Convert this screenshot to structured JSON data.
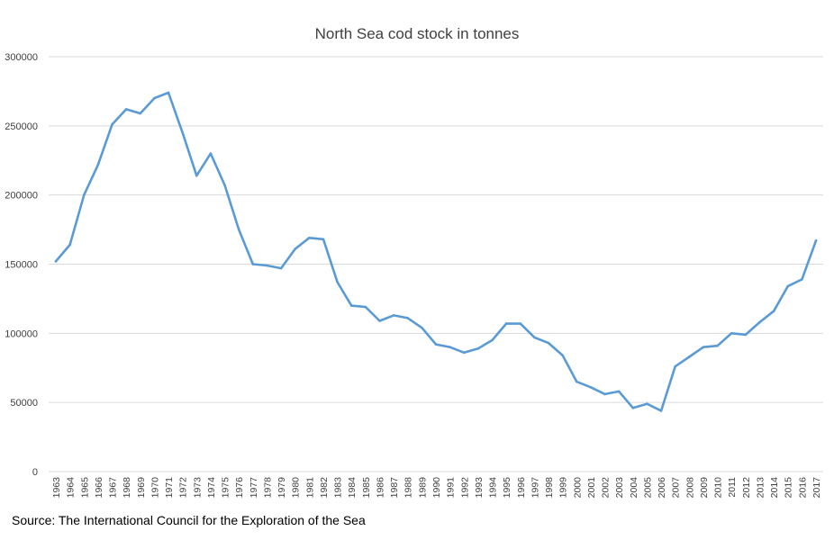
{
  "chart_data": {
    "type": "line",
    "title": "North Sea cod stock in tonnes",
    "xlabel": "",
    "ylabel": "",
    "ylim": [
      0,
      300000
    ],
    "yticks": [
      0,
      50000,
      100000,
      150000,
      200000,
      250000,
      300000
    ],
    "grid": true,
    "legend": "none",
    "x": [
      "1963",
      "1964",
      "1965",
      "1966",
      "1967",
      "1968",
      "1969",
      "1970",
      "1971",
      "1972",
      "1973",
      "1974",
      "1975",
      "1976",
      "1977",
      "1978",
      "1979",
      "1980",
      "1981",
      "1982",
      "1983",
      "1984",
      "1985",
      "1986",
      "1987",
      "1988",
      "1989",
      "1990",
      "1991",
      "1992",
      "1993",
      "1994",
      "1995",
      "1996",
      "1997",
      "1998",
      "1999",
      "2000",
      "2001",
      "2002",
      "2003",
      "2004",
      "2005",
      "2006",
      "2007",
      "2008",
      "2009",
      "2010",
      "2011",
      "2012",
      "2013",
      "2014",
      "2015",
      "2016",
      "2017"
    ],
    "series": [
      {
        "color": "#5b9bd5",
        "values": [
          152000,
          164000,
          200000,
          222000,
          251000,
          262000,
          259000,
          270000,
          274000,
          245000,
          214000,
          230000,
          207000,
          175000,
          150000,
          149000,
          147000,
          161000,
          169000,
          168000,
          137000,
          120000,
          119000,
          109000,
          113000,
          111000,
          104000,
          92000,
          90000,
          86000,
          89000,
          95000,
          107000,
          107000,
          97000,
          93000,
          84000,
          65000,
          61000,
          56000,
          58000,
          46000,
          49000,
          44000,
          76000,
          83000,
          90000,
          91000,
          100000,
          99000,
          108000,
          116000,
          134000,
          139000,
          167000
        ]
      }
    ]
  },
  "source": "Source: The International Council for the Exploration of the Sea",
  "colors": {
    "gridline": "#d9d9d9",
    "line": "#5b9bd5",
    "text": "#404040"
  }
}
